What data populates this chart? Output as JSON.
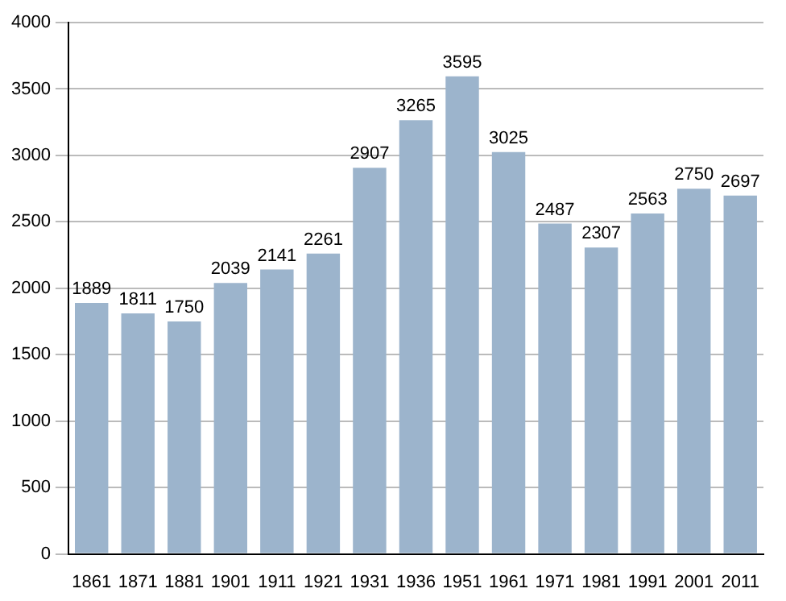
{
  "chart_data": {
    "type": "bar",
    "categories": [
      "1861",
      "1871",
      "1881",
      "1901",
      "1911",
      "1921",
      "1931",
      "1936",
      "1951",
      "1961",
      "1971",
      "1981",
      "1991",
      "2001",
      "2011"
    ],
    "values": [
      1889,
      1811,
      1750,
      2039,
      2141,
      2261,
      2907,
      3265,
      3595,
      3025,
      2487,
      2307,
      2563,
      2750,
      2697
    ],
    "color": "#9cb4cc",
    "ylim": [
      0,
      4000
    ],
    "yticks": [
      0,
      500,
      1000,
      1500,
      2000,
      2500,
      3000,
      3500,
      4000
    ],
    "grid": "y",
    "data_labels": true
  }
}
